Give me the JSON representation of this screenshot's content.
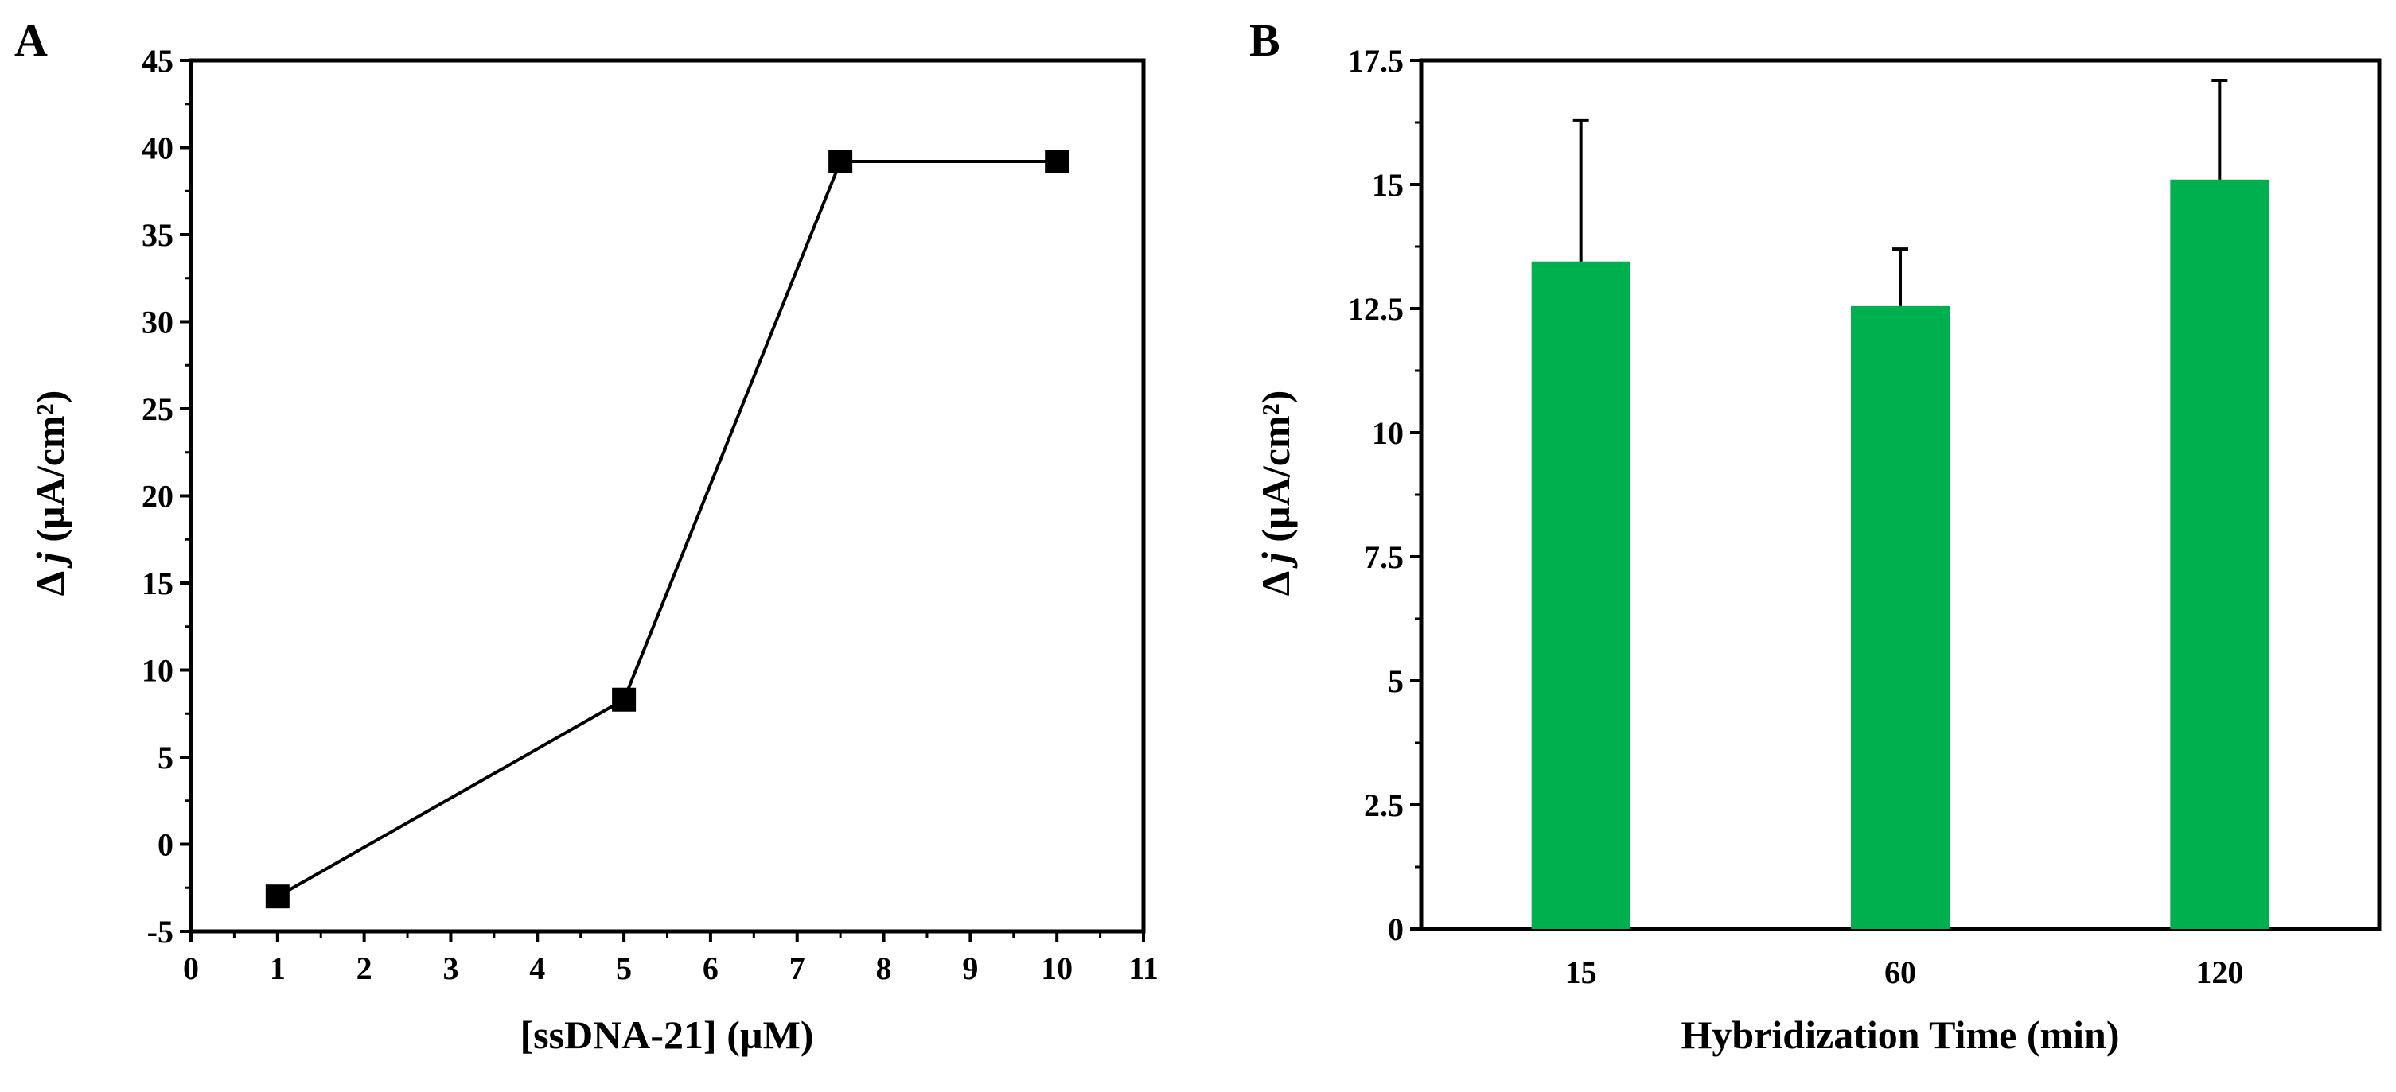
{
  "chart_data": [
    {
      "panel": "A",
      "type": "line",
      "marker": "square",
      "x": [
        1,
        5,
        7.5,
        10
      ],
      "y": [
        -3,
        8.3,
        39.2,
        39.2
      ],
      "xlabel": "[ssDNA-21] (µM)",
      "ylabel": {
        "prefix": "Δ ",
        "var": "j",
        "unit": " (µA/cm²)"
      },
      "xlim": [
        0,
        11
      ],
      "ylim": [
        -5,
        45
      ],
      "xticks": [
        "0",
        "1",
        "2",
        "3",
        "4",
        "5",
        "6",
        "7",
        "8",
        "9",
        "10",
        "11"
      ],
      "yticks": [
        "-5",
        "0",
        "5",
        "10",
        "15",
        "20",
        "25",
        "30",
        "35",
        "40",
        "45"
      ],
      "grid": false
    },
    {
      "panel": "B",
      "type": "bar",
      "categories": [
        "15",
        "60",
        "120"
      ],
      "values": [
        13.45,
        12.55,
        15.1
      ],
      "errors": [
        2.85,
        1.15,
        2.0
      ],
      "xlabel": "Hybridization Time (min)",
      "ylabel": {
        "prefix": "Δ ",
        "var": "j",
        "unit": " (µA/cm²)"
      },
      "ylim": [
        0,
        17.5
      ],
      "yticks": [
        "0",
        "2.5",
        "5",
        "7.5",
        "10",
        "12.5",
        "15",
        "17.5"
      ],
      "bar_color": "#00b04f",
      "grid": false
    }
  ]
}
